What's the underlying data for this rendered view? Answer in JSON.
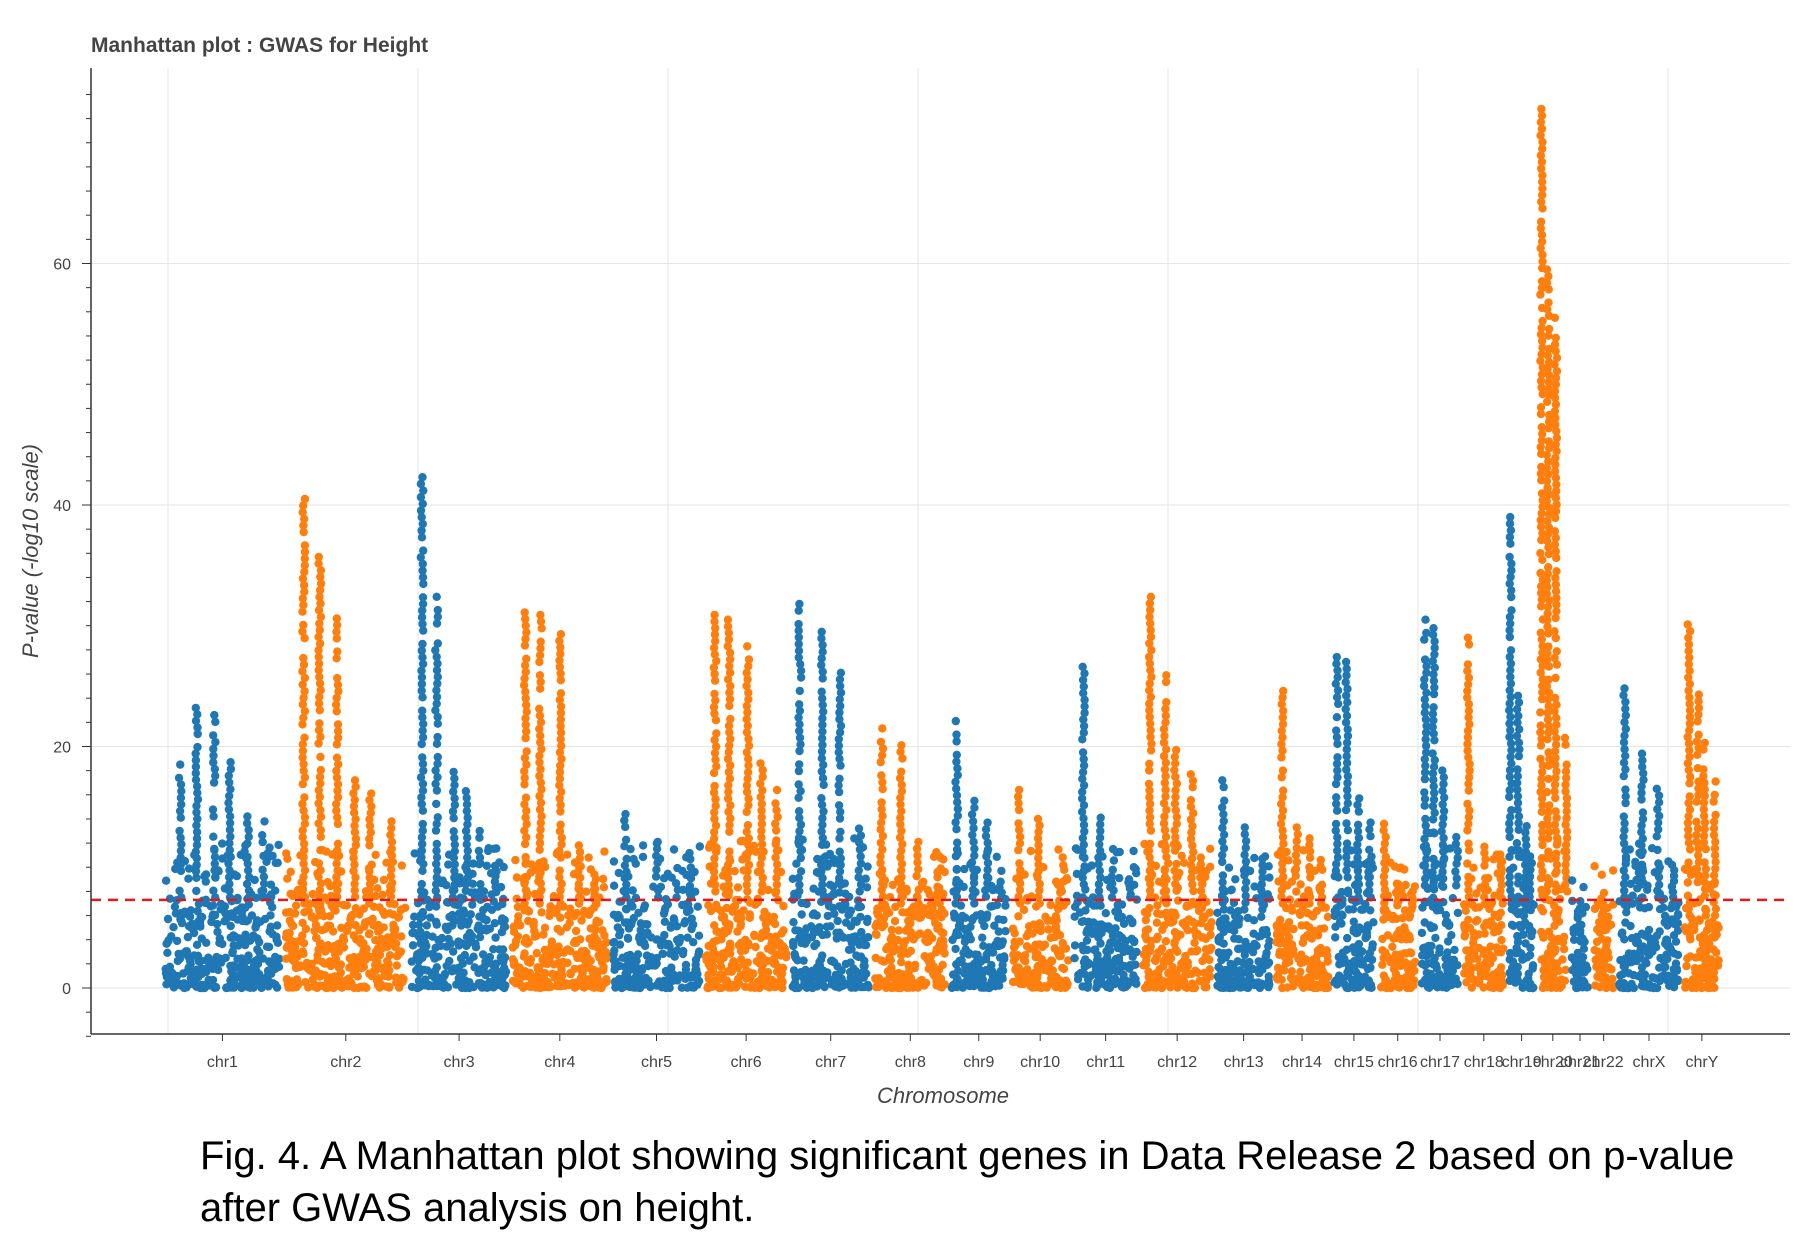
{
  "caption": "Fig. 4. A Manhattan plot showing significant genes in Data Release 2 based on p-value after GWAS analysis on height.",
  "colors": {
    "series_a": "#1f77b4",
    "series_b": "#ff7f0e",
    "threshold": "#e31a1c",
    "grid": "#e6e6e6",
    "axis": "#333333"
  },
  "chart_data": {
    "type": "scatter",
    "title": "Manhattan plot : GWAS for Height",
    "xlabel": "Chromosome",
    "ylabel": "P-value (-log10 scale)",
    "ylim": [
      -4,
      76
    ],
    "yticks": [
      0,
      20,
      40,
      60
    ],
    "grid": true,
    "threshold": {
      "value": 7.3,
      "style": "dashed"
    },
    "categories": [
      "chr1",
      "chr2",
      "chr3",
      "chr4",
      "chr5",
      "chr6",
      "chr7",
      "chr8",
      "chr9",
      "chr10",
      "chr11",
      "chr12",
      "chr13",
      "chr14",
      "chr15",
      "chr16",
      "chr17",
      "chr18",
      "chr19",
      "chr20",
      "chr21",
      "chr22",
      "chrX",
      "chrY"
    ],
    "chromosomes": [
      {
        "name": "chr1",
        "color": "#1f77b4",
        "base": 7.5,
        "peaks": [
          18.5,
          23.2,
          22.6,
          18.7,
          14.2,
          13.8
        ]
      },
      {
        "name": "chr2",
        "color": "#ff7f0e",
        "base": 7.0,
        "peaks": [
          40.5,
          35.7,
          30.6,
          17.2,
          16.1,
          13.8
        ]
      },
      {
        "name": "chr3",
        "color": "#1f77b4",
        "base": 7.5,
        "peaks": [
          42.3,
          32.4,
          17.9,
          16.3,
          13.0,
          10.1
        ]
      },
      {
        "name": "chr4",
        "color": "#ff7f0e",
        "base": 7.0,
        "peaks": [
          31.1,
          30.9,
          29.3,
          11.8,
          9.4
        ]
      },
      {
        "name": "chr5",
        "color": "#1f77b4",
        "base": 7.5,
        "peaks": [
          14.4,
          12.1,
          9.4
        ]
      },
      {
        "name": "chr6",
        "color": "#ff7f0e",
        "base": 8.0,
        "peaks": [
          30.9,
          30.5,
          28.3,
          18.6,
          16.4
        ]
      },
      {
        "name": "chr7",
        "color": "#1f77b4",
        "base": 8.0,
        "peaks": [
          31.8,
          29.5,
          26.1,
          13.2
        ]
      },
      {
        "name": "chr8",
        "color": "#ff7f0e",
        "base": 7.0,
        "peaks": [
          21.5,
          20.1,
          12.1,
          9.6
        ]
      },
      {
        "name": "chr9",
        "color": "#1f77b4",
        "base": 7.0,
        "peaks": [
          22.1,
          15.5,
          13.7,
          9.7
        ]
      },
      {
        "name": "chr10",
        "color": "#ff7f0e",
        "base": 7.0,
        "peaks": [
          16.4,
          14.0,
          8.5
        ]
      },
      {
        "name": "chr11",
        "color": "#1f77b4",
        "base": 7.5,
        "peaks": [
          26.6,
          14.1,
          11.5,
          9.0
        ]
      },
      {
        "name": "chr12",
        "color": "#ff7f0e",
        "base": 7.5,
        "peaks": [
          32.4,
          25.9,
          19.7,
          17.7,
          10.8
        ]
      },
      {
        "name": "chr13",
        "color": "#1f77b4",
        "base": 6.5,
        "peaks": [
          17.2,
          13.3,
          10.7
        ]
      },
      {
        "name": "chr14",
        "color": "#ff7f0e",
        "base": 7.0,
        "peaks": [
          24.6,
          13.3,
          12.4,
          10.6
        ]
      },
      {
        "name": "chr15",
        "color": "#1f77b4",
        "base": 7.5,
        "peaks": [
          27.4,
          27.0,
          15.7,
          13.7
        ]
      },
      {
        "name": "chr16",
        "color": "#ff7f0e",
        "base": 6.5,
        "peaks": [
          13.6,
          8.6,
          8.0
        ]
      },
      {
        "name": "chr17",
        "color": "#1f77b4",
        "base": 8.5,
        "peaks": [
          30.5,
          29.8,
          18.0,
          12.5
        ]
      },
      {
        "name": "chr18",
        "color": "#ff7f0e",
        "base": 7.0,
        "peaks": [
          29.0,
          11.7,
          10.6
        ]
      },
      {
        "name": "chr19",
        "color": "#1f77b4",
        "base": 7.0,
        "peaks": [
          39.0,
          24.2,
          13.4,
          10.9
        ]
      },
      {
        "name": "chr20",
        "color": "#ff7f0e",
        "base": 8.0,
        "peaks": [
          72.8,
          59.5,
          55.5,
          20.7
        ]
      },
      {
        "name": "chr21",
        "color": "#1f77b4",
        "base": 5.0,
        "peaks": [
          6.6
        ]
      },
      {
        "name": "chr22",
        "color": "#ff7f0e",
        "base": 6.0,
        "peaks": [
          7.4
        ]
      },
      {
        "name": "chrX",
        "color": "#1f77b4",
        "base": 7.5,
        "peaks": [
          24.8,
          19.4,
          16.5,
          10.2
        ]
      },
      {
        "name": "chrY",
        "color": "#ff7f0e",
        "base": 6.0,
        "peaks": [
          30.1,
          24.3,
          20.3,
          17.1
        ]
      }
    ]
  }
}
